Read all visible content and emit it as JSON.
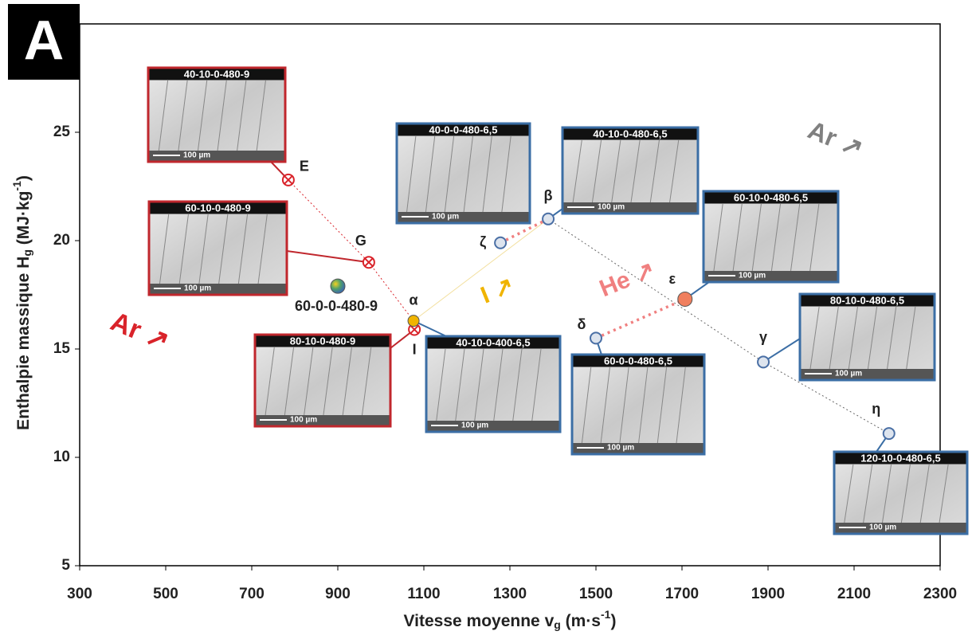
{
  "panel": "A",
  "chart_data": {
    "type": "scatter",
    "xlabel": {
      "text": "Vitesse moyenne v",
      "sub": "g",
      "unit": " (m·s",
      "sup": "-1",
      "end": ")"
    },
    "ylabel": {
      "text": "Enthalpie massique H",
      "sub": "g",
      "unit": " (MJ·kg",
      "sup": "-1",
      "end": ")"
    },
    "xlim": [
      300,
      2300
    ],
    "xticks": [
      300,
      500,
      700,
      900,
      1100,
      1300,
      1500,
      1700,
      1900,
      2100,
      2300
    ],
    "ylim": [
      5,
      30
    ],
    "yticks": [
      5,
      10,
      15,
      20,
      25
    ],
    "series": [
      {
        "color": "#d9232a",
        "marker": "cross",
        "x": [
          785,
          972,
          1078
        ],
        "values": [
          22.8,
          19.0,
          15.9
        ],
        "labels": [
          "E",
          "G",
          "I"
        ]
      },
      {
        "color": "#4a6fa5",
        "marker": "open",
        "x": [
          1278,
          1389,
          1500,
          1889,
          2181
        ],
        "values": [
          19.9,
          21.0,
          15.5,
          14.4,
          11.1
        ],
        "labels": [
          "ζ",
          "β",
          "δ",
          "γ",
          "η"
        ]
      },
      {
        "color": "#f0b400",
        "marker": "filled",
        "x": [
          1076
        ],
        "values": [
          16.3
        ],
        "labels": [
          "α"
        ]
      },
      {
        "color": "#f07f5e",
        "marker": "filled",
        "x": [
          1707
        ],
        "values": [
          17.3
        ],
        "labels": [
          "ε"
        ]
      },
      {
        "color": "#4fa06a",
        "marker": "filled",
        "x": [
          900
        ],
        "values": [
          17.9
        ],
        "labels": [
          "60-0-0-480-9"
        ]
      }
    ],
    "annotations": [
      {
        "text": "Ar ↗",
        "color": "#d9232a"
      },
      {
        "text": "I ↗",
        "color": "#f0b400"
      },
      {
        "text": "He ↗",
        "color": "#f08080"
      },
      {
        "text": "Ar ↗",
        "color": "#808080"
      }
    ],
    "insets": [
      {
        "label": "40-10-0-480-9",
        "scale": "100 µm"
      },
      {
        "label": "60-10-0-480-9",
        "scale": "100 µm"
      },
      {
        "label": "80-10-0-480-9",
        "scale": "100 µm"
      },
      {
        "label": "40-0-0-480-6,5",
        "scale": "100 µm"
      },
      {
        "label": "40-10-0-480-6,5",
        "scale": "100 µm"
      },
      {
        "label": "60-10-0-480-6,5",
        "scale": "100 µm"
      },
      {
        "label": "40-10-0-400-6,5",
        "scale": "100 µm"
      },
      {
        "label": "60-0-0-480-6,5",
        "scale": "100 µm"
      },
      {
        "label": "80-10-0-480-6,5",
        "scale": "100 µm"
      },
      {
        "label": "120-10-0-480-6,5",
        "scale": "100 µm"
      }
    ]
  }
}
